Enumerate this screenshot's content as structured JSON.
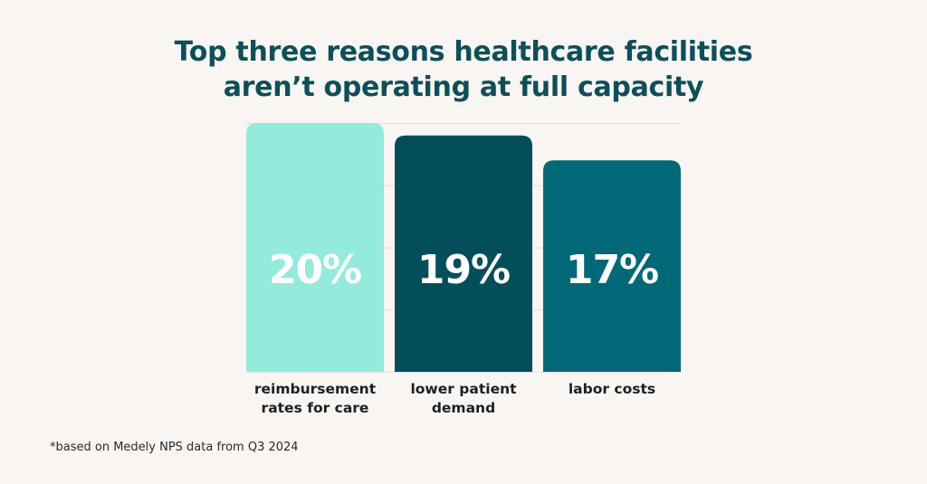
{
  "chart_data": {
    "type": "bar",
    "title": "Top three reasons healthcare facilities aren’t operating at full capacity",
    "title_lines": [
      "Top three reasons healthcare facilities",
      "aren’t operating at full capacity"
    ],
    "categories": [
      "reimbursement rates for care",
      "lower patient demand",
      "labor costs"
    ],
    "category_lines": [
      [
        "reimbursement",
        "rates for care"
      ],
      [
        "lower patient",
        "demand"
      ],
      [
        "labor costs"
      ]
    ],
    "values": [
      20,
      19,
      17
    ],
    "data_labels": [
      "20%",
      "19%",
      "17%"
    ],
    "colors": [
      "#93ebdc",
      "#024f5b",
      "#016877"
    ],
    "xlabel": "",
    "ylabel": "",
    "ylim": [
      0,
      20
    ],
    "yticks": [
      0,
      5,
      10,
      15,
      20
    ],
    "grid": true,
    "legend": "none",
    "footnote": "*based on Medely NPS data from Q3 2024"
  },
  "colors": {
    "background": "#f9f5f2",
    "title": "#0d4f59",
    "gridline": "#e8e2de",
    "label_text": "#1f1f1f",
    "value_text": "#ffffff"
  }
}
